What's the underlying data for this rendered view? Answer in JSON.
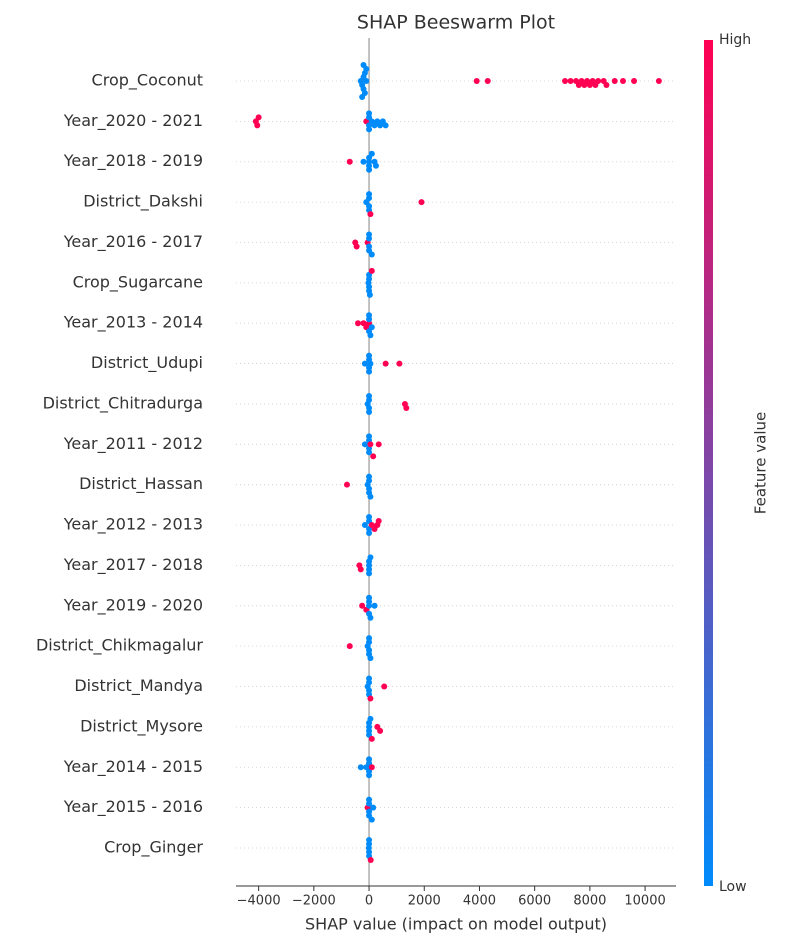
{
  "chart_data": {
    "type": "beeswarm",
    "title": "SHAP Beeswarm Plot",
    "xlabel": "SHAP value (impact on model output)",
    "features": [
      "Crop_Coconut",
      "Year_2020 - 2021",
      "Year_2018 - 2019",
      "District_Dakshi",
      "Year_2016 - 2017",
      "Crop_Sugarcane",
      "Year_2013 - 2014",
      "District_Udupi",
      "District_Chitradurga",
      "Year_2011 - 2012",
      "District_Hassan",
      "Year_2012 - 2013",
      "Year_2017 - 2018",
      "Year_2019 - 2020",
      "District_Chikmagalur",
      "District_Mandya",
      "District_Mysore",
      "Year_2014 - 2015",
      "Year_2015 - 2016",
      "Crop_Ginger"
    ],
    "shap_values": [
      [
        -300,
        -250,
        -200,
        -200,
        -150,
        -150,
        -100,
        -100,
        -250,
        -200,
        3900,
        4300,
        7100,
        7300,
        7500,
        7600,
        7700,
        7800,
        7900,
        8000,
        8100,
        8200,
        8300,
        8500,
        8600,
        8900,
        9200,
        9600,
        10500
      ],
      [
        -4100,
        -4050,
        -4000,
        -100,
        0,
        0,
        0,
        0,
        100,
        200,
        300,
        400,
        500,
        600
      ],
      [
        -700,
        -200,
        0,
        0,
        0,
        0,
        100,
        200,
        250
      ],
      [
        -100,
        0,
        0,
        0,
        0,
        50,
        1900
      ],
      [
        -500,
        -450,
        -50,
        0,
        0,
        0,
        0,
        100
      ],
      [
        -20,
        0,
        0,
        0,
        0,
        30,
        100
      ],
      [
        -400,
        -200,
        -100,
        0,
        0,
        0,
        0,
        50,
        100
      ],
      [
        -150,
        0,
        0,
        0,
        0,
        50,
        600,
        1100
      ],
      [
        -50,
        0,
        0,
        0,
        0,
        1300,
        1350
      ],
      [
        -150,
        0,
        0,
        0,
        0,
        50,
        150,
        350
      ],
      [
        -800,
        -50,
        0,
        0,
        0,
        0,
        50
      ],
      [
        -150,
        0,
        0,
        0,
        0,
        100,
        200,
        300,
        350
      ],
      [
        -350,
        -300,
        0,
        0,
        0,
        0,
        50
      ],
      [
        -250,
        -100,
        0,
        0,
        0,
        0,
        50,
        200
      ],
      [
        -700,
        -50,
        0,
        0,
        0,
        0,
        50
      ],
      [
        -50,
        0,
        0,
        0,
        0,
        50,
        550
      ],
      [
        0,
        0,
        0,
        0,
        50,
        100,
        300,
        400
      ],
      [
        -300,
        -100,
        0,
        0,
        0,
        0,
        100
      ],
      [
        -50,
        0,
        0,
        0,
        0,
        100,
        150
      ],
      [
        -10,
        0,
        0,
        0,
        0,
        60
      ]
    ],
    "feature_levels": [
      [
        0,
        0,
        0,
        0,
        0,
        0,
        0,
        0,
        0,
        0,
        1,
        1,
        1,
        1,
        1,
        1,
        1,
        1,
        1,
        1,
        1,
        1,
        1,
        1,
        1,
        1,
        1,
        1,
        1
      ],
      [
        1,
        1,
        1,
        1,
        0,
        0,
        0,
        0,
        0,
        0,
        0,
        0,
        0,
        0
      ],
      [
        1,
        0,
        0,
        0,
        0,
        0,
        0,
        0,
        0
      ],
      [
        0,
        0,
        0,
        0,
        0,
        1,
        1
      ],
      [
        1,
        1,
        1,
        0,
        0,
        0,
        0,
        0
      ],
      [
        0,
        0,
        0,
        0,
        0,
        0,
        1
      ],
      [
        1,
        1,
        1,
        1,
        0,
        0,
        0,
        0,
        0
      ],
      [
        0,
        0,
        0,
        0,
        0,
        0,
        1,
        1
      ],
      [
        0,
        0,
        0,
        0,
        0,
        1,
        1
      ],
      [
        0,
        0,
        0,
        0,
        0,
        1,
        1,
        1
      ],
      [
        1,
        0,
        0,
        0,
        0,
        0,
        0
      ],
      [
        0,
        0,
        0,
        0,
        0,
        1,
        1,
        1,
        1
      ],
      [
        1,
        1,
        0,
        0,
        0,
        0,
        0
      ],
      [
        1,
        1,
        0,
        0,
        0,
        0,
        0,
        0
      ],
      [
        1,
        0,
        0,
        0,
        0,
        0,
        0
      ],
      [
        0,
        0,
        0,
        0,
        0,
        1,
        1
      ],
      [
        0,
        0,
        0,
        0,
        0,
        1,
        1,
        1
      ],
      [
        0,
        0,
        0,
        0,
        0,
        0,
        1
      ],
      [
        1,
        0,
        0,
        0,
        0,
        0,
        0
      ],
      [
        0,
        0,
        0,
        0,
        0,
        1
      ]
    ],
    "xlim": [
      -4820,
      11120
    ],
    "xticks": [
      {
        "value": -4000,
        "label": "−4000"
      },
      {
        "value": -2000,
        "label": "−2000"
      },
      0,
      2000,
      4000,
      6000,
      8000,
      10000
    ],
    "grid": true,
    "colorbar": {
      "label": "Feature value",
      "high_label": "High",
      "low_label": "Low",
      "low_color": "#008bfb",
      "high_color": "#ff0052"
    }
  }
}
